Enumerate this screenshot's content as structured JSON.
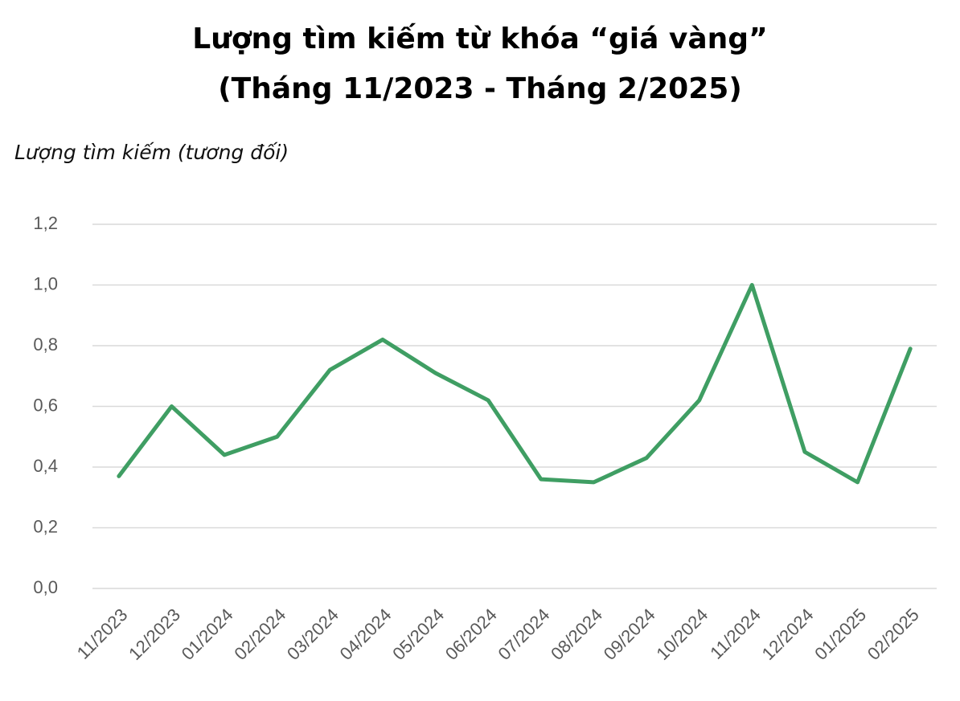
{
  "chart_data": {
    "type": "line",
    "title": [
      "Lượng tìm kiếm từ khóa “giá vàng”",
      "(Tháng 11/2023 - Tháng 2/2025)"
    ],
    "y_label": "Lượng tìm kiếm (tương đối)",
    "categories": [
      "11/2023",
      "12/2023",
      "01/2024",
      "02/2024",
      "03/2024",
      "04/2024",
      "05/2024",
      "06/2024",
      "07/2024",
      "08/2024",
      "09/2024",
      "10/2024",
      "11/2024",
      "12/2024",
      "01/2025",
      "02/2025"
    ],
    "values": [
      0.37,
      0.6,
      0.44,
      0.5,
      0.72,
      0.82,
      0.71,
      0.62,
      0.36,
      0.35,
      0.43,
      0.62,
      1.0,
      0.45,
      0.35,
      0.79
    ],
    "color": "#3f9e63",
    "ylim": [
      0,
      1.2
    ],
    "yticks": [
      {
        "value": 0,
        "label": "0,0"
      },
      {
        "value": 0.2,
        "label": "0,2"
      },
      {
        "value": 0.4,
        "label": "0,4"
      },
      {
        "value": 0.6,
        "label": "0,6"
      },
      {
        "value": 0.8,
        "label": "0,8"
      },
      {
        "value": 1.0,
        "label": "1,0"
      },
      {
        "value": 1.2,
        "label": "1,2"
      }
    ],
    "grid": true
  }
}
